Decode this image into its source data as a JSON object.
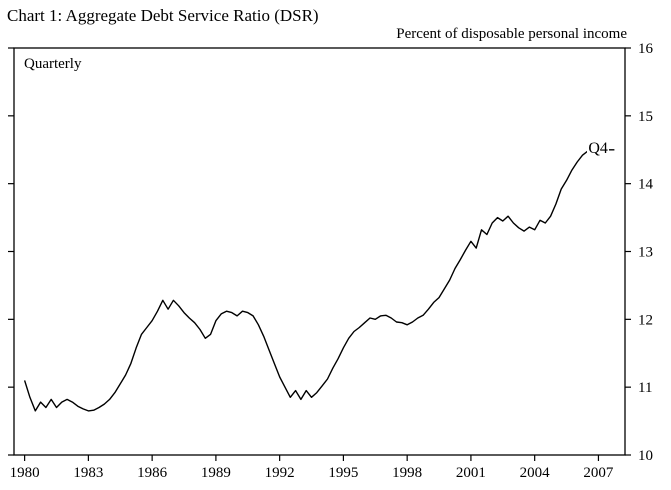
{
  "header": {
    "title": "Chart 1: Aggregate Debt Service Ratio (DSR)",
    "unit_label": "Percent of disposable personal income"
  },
  "chart_data": {
    "type": "line",
    "title": "Chart 1: Aggregate Debt Service Ratio (DSR)",
    "ylabel": "Percent of disposable personal income",
    "xlabel": "",
    "frequency_label": "Quarterly",
    "end_annotation": "Q4",
    "grid": false,
    "legend": "none",
    "line_color": "#000000",
    "xlim": [
      1979.5,
      2008.25
    ],
    "ylim": [
      10,
      16
    ],
    "x_ticks": [
      1980,
      1983,
      1986,
      1989,
      1992,
      1995,
      1998,
      2001,
      2004,
      2007
    ],
    "y_ticks": [
      10,
      11,
      12,
      13,
      14,
      15,
      16
    ],
    "x_start": 1980.0,
    "x_step_years": 0.25,
    "series": [
      {
        "name": "Aggregate debt service ratio (percent of disposable personal income, quarterly)",
        "values": [
          11.1,
          10.85,
          10.65,
          10.78,
          10.7,
          10.82,
          10.7,
          10.78,
          10.82,
          10.78,
          10.72,
          10.68,
          10.65,
          10.66,
          10.7,
          10.75,
          10.82,
          10.92,
          11.05,
          11.18,
          11.35,
          11.58,
          11.78,
          11.88,
          11.98,
          12.12,
          12.28,
          12.15,
          12.28,
          12.2,
          12.1,
          12.02,
          11.95,
          11.85,
          11.72,
          11.78,
          11.98,
          12.08,
          12.12,
          12.1,
          12.05,
          12.12,
          12.1,
          12.05,
          11.92,
          11.75,
          11.55,
          11.35,
          11.15,
          11.0,
          10.85,
          10.95,
          10.82,
          10.95,
          10.85,
          10.92,
          11.02,
          11.12,
          11.28,
          11.42,
          11.58,
          11.72,
          11.82,
          11.88,
          11.95,
          12.02,
          12.0,
          12.05,
          12.06,
          12.02,
          11.96,
          11.95,
          11.92,
          11.96,
          12.02,
          12.06,
          12.15,
          12.25,
          12.32,
          12.45,
          12.58,
          12.75,
          12.88,
          13.02,
          13.15,
          13.05,
          13.32,
          13.25,
          13.42,
          13.5,
          13.45,
          13.52,
          13.42,
          13.35,
          13.3,
          13.36,
          13.32,
          13.46,
          13.42,
          13.52,
          13.7,
          13.92,
          14.05,
          14.2,
          14.32,
          14.42,
          14.48,
          14.42,
          14.46,
          14.52,
          14.5,
          14.5
        ]
      }
    ]
  }
}
